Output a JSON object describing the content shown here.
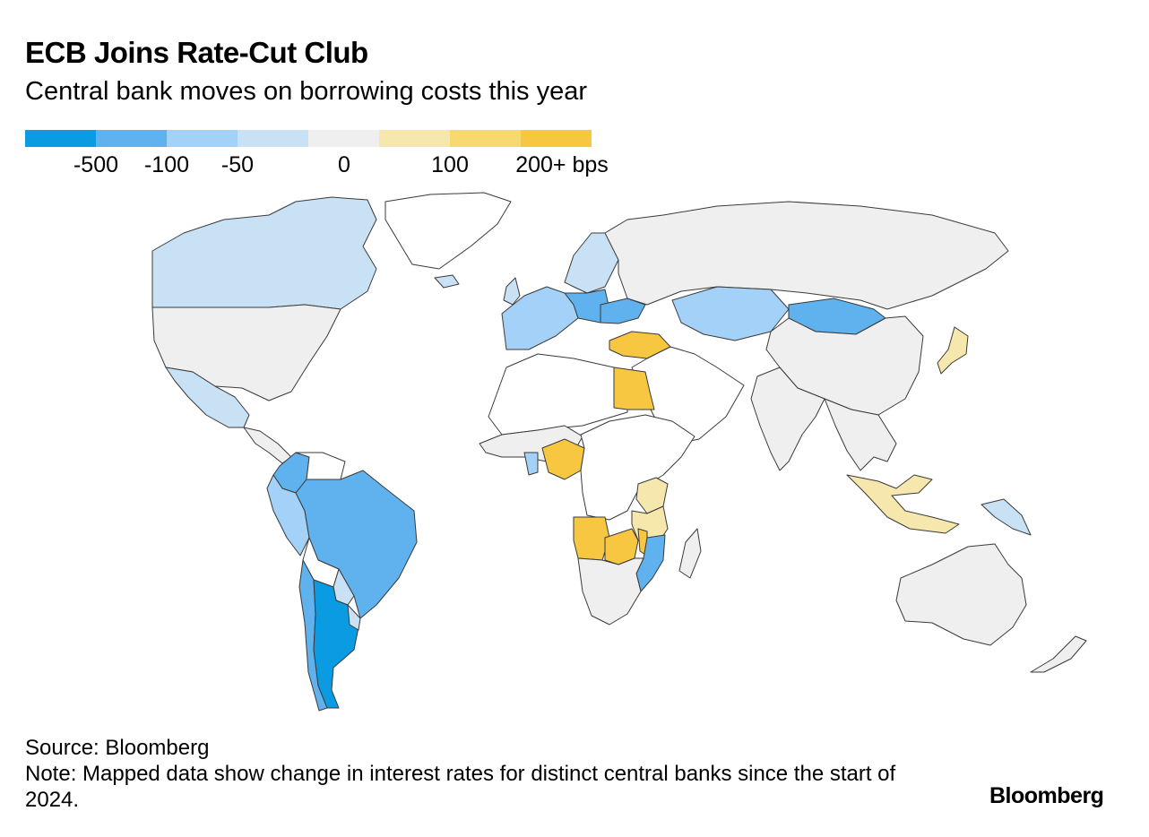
{
  "title": "ECB Joins Rate-Cut Club",
  "subtitle": "Central bank moves on borrowing costs this year",
  "legend": {
    "swatches": [
      {
        "color": "#0a9be3"
      },
      {
        "color": "#5fb2ee"
      },
      {
        "color": "#a3d1f7"
      },
      {
        "color": "#c9e1f5"
      },
      {
        "color": "#efefef"
      },
      {
        "color": "#f6e7ad"
      },
      {
        "color": "#f7d970"
      },
      {
        "color": "#f7c741"
      }
    ],
    "labels": [
      "-500",
      "-100",
      "-50",
      "0",
      "100",
      "200+ bps"
    ]
  },
  "colors": {
    "no_data": "#ffffff",
    "border": "#3a3a3a"
  },
  "regions": [
    {
      "name": "Canada",
      "color": "#c9e1f5"
    },
    {
      "name": "United States",
      "color": "#efefef"
    },
    {
      "name": "Mexico",
      "color": "#c9e1f5"
    },
    {
      "name": "Central America",
      "color": "#efefef"
    },
    {
      "name": "Colombia",
      "color": "#5fb2ee"
    },
    {
      "name": "Venezuela",
      "color": "#ffffff"
    },
    {
      "name": "Peru",
      "color": "#a3d1f7"
    },
    {
      "name": "Brazil",
      "color": "#5fb2ee"
    },
    {
      "name": "Bolivia",
      "color": "#ffffff"
    },
    {
      "name": "Paraguay",
      "color": "#c9e1f5"
    },
    {
      "name": "Chile",
      "color": "#5fb2ee"
    },
    {
      "name": "Argentina",
      "color": "#0a9be3"
    },
    {
      "name": "Uruguay",
      "color": "#c9e1f5"
    },
    {
      "name": "Greenland",
      "color": "#ffffff"
    },
    {
      "name": "Iceland",
      "color": "#c9e1f5"
    },
    {
      "name": "United Kingdom",
      "color": "#c9e1f5"
    },
    {
      "name": "Scandinavia",
      "color": "#c9e1f5"
    },
    {
      "name": "Western Europe",
      "color": "#a3d1f7"
    },
    {
      "name": "Eastern Europe",
      "color": "#5fb2ee"
    },
    {
      "name": "Ukraine",
      "color": "#5fb2ee"
    },
    {
      "name": "Turkey",
      "color": "#f7c741"
    },
    {
      "name": "Russia",
      "color": "#efefef"
    },
    {
      "name": "Kazakhstan",
      "color": "#a3d1f7"
    },
    {
      "name": "Mongolia",
      "color": "#5fb2ee"
    },
    {
      "name": "China",
      "color": "#efefef"
    },
    {
      "name": "Japan",
      "color": "#f6e7ad"
    },
    {
      "name": "Middle East",
      "color": "#ffffff"
    },
    {
      "name": "India",
      "color": "#efefef"
    },
    {
      "name": "Southeast Asia",
      "color": "#efefef"
    },
    {
      "name": "Indonesia",
      "color": "#f6e7ad"
    },
    {
      "name": "Papua New Guinea",
      "color": "#c9e1f5"
    },
    {
      "name": "Australia",
      "color": "#efefef"
    },
    {
      "name": "New Zealand",
      "color": "#efefef"
    },
    {
      "name": "North Africa",
      "color": "#ffffff"
    },
    {
      "name": "Egypt",
      "color": "#f7c741"
    },
    {
      "name": "West Africa",
      "color": "#efefef"
    },
    {
      "name": "Nigeria",
      "color": "#f7c741"
    },
    {
      "name": "Ghana",
      "color": "#a3d1f7"
    },
    {
      "name": "Central Africa",
      "color": "#ffffff"
    },
    {
      "name": "Kenya",
      "color": "#f6e7ad"
    },
    {
      "name": "Tanzania",
      "color": "#f6e7ad"
    },
    {
      "name": "Angola",
      "color": "#f7c741"
    },
    {
      "name": "Zambia",
      "color": "#f7c741"
    },
    {
      "name": "Malawi",
      "color": "#f7c741"
    },
    {
      "name": "Mozambique",
      "color": "#5fb2ee"
    },
    {
      "name": "Southern Africa",
      "color": "#efefef"
    },
    {
      "name": "Madagascar",
      "color": "#efefef"
    }
  ],
  "source": "Source: Bloomberg",
  "note": "Note: Mapped data show change in interest rates for distinct central banks since the start of 2024.",
  "logo": "Bloomberg"
}
